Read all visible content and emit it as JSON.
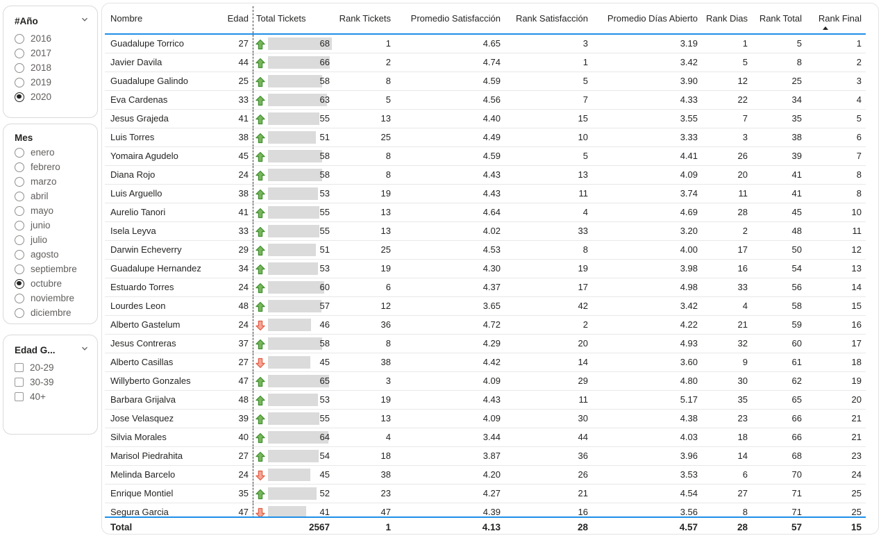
{
  "filters": {
    "year": {
      "title": "#Año",
      "type": "radio",
      "has_chevron": true,
      "options": [
        "2016",
        "2017",
        "2018",
        "2019",
        "2020"
      ],
      "selected": "2020"
    },
    "month": {
      "title": "Mes",
      "type": "radio",
      "has_chevron": false,
      "options": [
        "enero",
        "febrero",
        "marzo",
        "abril",
        "mayo",
        "junio",
        "julio",
        "agosto",
        "septiembre",
        "octubre",
        "noviembre",
        "diciembre"
      ],
      "selected": "octubre"
    },
    "age": {
      "title": "Edad G...",
      "type": "checkbox",
      "has_chevron": true,
      "options": [
        "20-29",
        "30-39",
        "40+"
      ],
      "selected": []
    }
  },
  "table": {
    "columns": [
      "Nombre",
      "Edad",
      "Total Tickets",
      "Rank Tickets",
      "Promedio Satisfacción",
      "Rank Satisfacción",
      "Promedio Días Abierto",
      "Rank Dias",
      "Rank Total",
      "Rank Final"
    ],
    "sort": {
      "column": "Rank Final",
      "direction": "asc"
    },
    "tickets_axis_max": 68,
    "rows": [
      {
        "name": "Guadalupe Torrico",
        "edad": "27",
        "trend": "up",
        "tickets": "68",
        "rank_tickets": "1",
        "prom_sat": "4.65",
        "rank_sat": "3",
        "prom_dias": "3.19",
        "rank_dias": "1",
        "rank_total": "5",
        "rank_final": "1"
      },
      {
        "name": "Javier Davila",
        "edad": "44",
        "trend": "up",
        "tickets": "66",
        "rank_tickets": "2",
        "prom_sat": "4.74",
        "rank_sat": "1",
        "prom_dias": "3.42",
        "rank_dias": "5",
        "rank_total": "8",
        "rank_final": "2"
      },
      {
        "name": "Guadalupe Galindo",
        "edad": "25",
        "trend": "up",
        "tickets": "58",
        "rank_tickets": "8",
        "prom_sat": "4.59",
        "rank_sat": "5",
        "prom_dias": "3.90",
        "rank_dias": "12",
        "rank_total": "25",
        "rank_final": "3"
      },
      {
        "name": "Eva Cardenas",
        "edad": "33",
        "trend": "up",
        "tickets": "63",
        "rank_tickets": "5",
        "prom_sat": "4.56",
        "rank_sat": "7",
        "prom_dias": "4.33",
        "rank_dias": "22",
        "rank_total": "34",
        "rank_final": "4"
      },
      {
        "name": "Jesus Grajeda",
        "edad": "41",
        "trend": "up",
        "tickets": "55",
        "rank_tickets": "13",
        "prom_sat": "4.40",
        "rank_sat": "15",
        "prom_dias": "3.55",
        "rank_dias": "7",
        "rank_total": "35",
        "rank_final": "5"
      },
      {
        "name": "Luis Torres",
        "edad": "38",
        "trend": "up",
        "tickets": "51",
        "rank_tickets": "25",
        "prom_sat": "4.49",
        "rank_sat": "10",
        "prom_dias": "3.33",
        "rank_dias": "3",
        "rank_total": "38",
        "rank_final": "6"
      },
      {
        "name": "Yomaira Agudelo",
        "edad": "45",
        "trend": "up",
        "tickets": "58",
        "rank_tickets": "8",
        "prom_sat": "4.59",
        "rank_sat": "5",
        "prom_dias": "4.41",
        "rank_dias": "26",
        "rank_total": "39",
        "rank_final": "7"
      },
      {
        "name": "Diana Rojo",
        "edad": "24",
        "trend": "up",
        "tickets": "58",
        "rank_tickets": "8",
        "prom_sat": "4.43",
        "rank_sat": "13",
        "prom_dias": "4.09",
        "rank_dias": "20",
        "rank_total": "41",
        "rank_final": "8"
      },
      {
        "name": "Luis Arguello",
        "edad": "38",
        "trend": "up",
        "tickets": "53",
        "rank_tickets": "19",
        "prom_sat": "4.43",
        "rank_sat": "11",
        "prom_dias": "3.74",
        "rank_dias": "11",
        "rank_total": "41",
        "rank_final": "8"
      },
      {
        "name": "Aurelio Tanori",
        "edad": "41",
        "trend": "up",
        "tickets": "55",
        "rank_tickets": "13",
        "prom_sat": "4.64",
        "rank_sat": "4",
        "prom_dias": "4.69",
        "rank_dias": "28",
        "rank_total": "45",
        "rank_final": "10"
      },
      {
        "name": "Isela Leyva",
        "edad": "33",
        "trend": "up",
        "tickets": "55",
        "rank_tickets": "13",
        "prom_sat": "4.02",
        "rank_sat": "33",
        "prom_dias": "3.20",
        "rank_dias": "2",
        "rank_total": "48",
        "rank_final": "11"
      },
      {
        "name": "Darwin Echeverry",
        "edad": "29",
        "trend": "up",
        "tickets": "51",
        "rank_tickets": "25",
        "prom_sat": "4.53",
        "rank_sat": "8",
        "prom_dias": "4.00",
        "rank_dias": "17",
        "rank_total": "50",
        "rank_final": "12"
      },
      {
        "name": "Guadalupe Hernandez",
        "edad": "34",
        "trend": "up",
        "tickets": "53",
        "rank_tickets": "19",
        "prom_sat": "4.30",
        "rank_sat": "19",
        "prom_dias": "3.98",
        "rank_dias": "16",
        "rank_total": "54",
        "rank_final": "13"
      },
      {
        "name": "Estuardo Torres",
        "edad": "24",
        "trend": "up",
        "tickets": "60",
        "rank_tickets": "6",
        "prom_sat": "4.37",
        "rank_sat": "17",
        "prom_dias": "4.98",
        "rank_dias": "33",
        "rank_total": "56",
        "rank_final": "14"
      },
      {
        "name": "Lourdes Leon",
        "edad": "48",
        "trend": "up",
        "tickets": "57",
        "rank_tickets": "12",
        "prom_sat": "3.65",
        "rank_sat": "42",
        "prom_dias": "3.42",
        "rank_dias": "4",
        "rank_total": "58",
        "rank_final": "15"
      },
      {
        "name": "Alberto Gastelum",
        "edad": "24",
        "trend": "down",
        "tickets": "46",
        "rank_tickets": "36",
        "prom_sat": "4.72",
        "rank_sat": "2",
        "prom_dias": "4.22",
        "rank_dias": "21",
        "rank_total": "59",
        "rank_final": "16"
      },
      {
        "name": "Jesus Contreras",
        "edad": "37",
        "trend": "up",
        "tickets": "58",
        "rank_tickets": "8",
        "prom_sat": "4.29",
        "rank_sat": "20",
        "prom_dias": "4.93",
        "rank_dias": "32",
        "rank_total": "60",
        "rank_final": "17"
      },
      {
        "name": "Alberto Casillas",
        "edad": "27",
        "trend": "down",
        "tickets": "45",
        "rank_tickets": "38",
        "prom_sat": "4.42",
        "rank_sat": "14",
        "prom_dias": "3.60",
        "rank_dias": "9",
        "rank_total": "61",
        "rank_final": "18"
      },
      {
        "name": "Willyberto Gonzales",
        "edad": "47",
        "trend": "up",
        "tickets": "65",
        "rank_tickets": "3",
        "prom_sat": "4.09",
        "rank_sat": "29",
        "prom_dias": "4.80",
        "rank_dias": "30",
        "rank_total": "62",
        "rank_final": "19"
      },
      {
        "name": "Barbara Grijalva",
        "edad": "48",
        "trend": "up",
        "tickets": "53",
        "rank_tickets": "19",
        "prom_sat": "4.43",
        "rank_sat": "11",
        "prom_dias": "5.17",
        "rank_dias": "35",
        "rank_total": "65",
        "rank_final": "20"
      },
      {
        "name": "Jose Velasquez",
        "edad": "39",
        "trend": "up",
        "tickets": "55",
        "rank_tickets": "13",
        "prom_sat": "4.09",
        "rank_sat": "30",
        "prom_dias": "4.38",
        "rank_dias": "23",
        "rank_total": "66",
        "rank_final": "21"
      },
      {
        "name": "Silvia Morales",
        "edad": "40",
        "trend": "up",
        "tickets": "64",
        "rank_tickets": "4",
        "prom_sat": "3.44",
        "rank_sat": "44",
        "prom_dias": "4.03",
        "rank_dias": "18",
        "rank_total": "66",
        "rank_final": "21"
      },
      {
        "name": "Marisol Piedrahita",
        "edad": "27",
        "trend": "up",
        "tickets": "54",
        "rank_tickets": "18",
        "prom_sat": "3.87",
        "rank_sat": "36",
        "prom_dias": "3.96",
        "rank_dias": "14",
        "rank_total": "68",
        "rank_final": "23"
      },
      {
        "name": "Melinda Barcelo",
        "edad": "24",
        "trend": "down",
        "tickets": "45",
        "rank_tickets": "38",
        "prom_sat": "4.20",
        "rank_sat": "26",
        "prom_dias": "3.53",
        "rank_dias": "6",
        "rank_total": "70",
        "rank_final": "24"
      },
      {
        "name": "Enrique Montiel",
        "edad": "35",
        "trend": "up",
        "tickets": "52",
        "rank_tickets": "23",
        "prom_sat": "4.27",
        "rank_sat": "21",
        "prom_dias": "4.54",
        "rank_dias": "27",
        "rank_total": "71",
        "rank_final": "25"
      },
      {
        "name": "Segura Garcia",
        "edad": "47",
        "trend": "down",
        "tickets": "41",
        "rank_tickets": "47",
        "prom_sat": "4.39",
        "rank_sat": "16",
        "prom_dias": "3.56",
        "rank_dias": "8",
        "rank_total": "71",
        "rank_final": "25"
      }
    ],
    "total": {
      "label": "Total",
      "tickets": "2567",
      "rank_tickets": "1",
      "prom_sat": "4.13",
      "rank_sat": "28",
      "prom_dias": "4.57",
      "rank_dias": "28",
      "rank_total": "57",
      "rank_final": "15"
    }
  },
  "colors": {
    "header_accent": "#1E8FE8",
    "up_arrow_fill": "#79B65A",
    "up_arrow_stroke": "#3E8E2F",
    "down_arrow_fill": "#F5A593",
    "down_arrow_stroke": "#E05C43",
    "data_bar": "#dbdbdb"
  }
}
